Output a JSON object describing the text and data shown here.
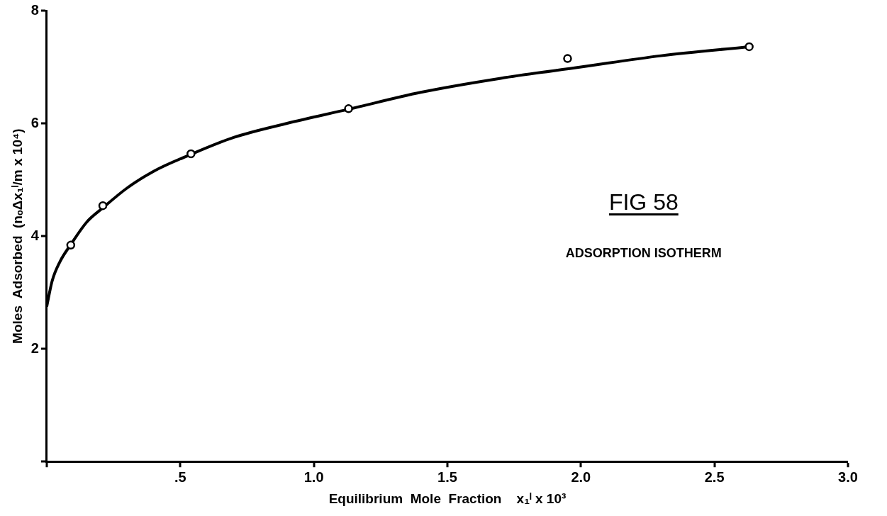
{
  "chart_data": {
    "type": "scatter",
    "xlabel": "Equilibrium  Mole  Fraction    x₁ˡ x 10³",
    "ylabel": "Moles  Adsorbed  (nₒΔx₁ˡ/m x 10⁴)",
    "annotations": [
      "FIG 58",
      "ADSORPTION  ISOTHERM"
    ],
    "xlim": [
      0,
      3
    ],
    "xticks": [
      {
        "value": 0,
        "label": null
      },
      {
        "value": 0.5,
        "label": ".5"
      },
      {
        "value": 1,
        "label": "1.0"
      },
      {
        "value": 1.5,
        "label": "1.5"
      },
      {
        "value": 2,
        "label": "2.0"
      },
      {
        "value": 2.5,
        "label": "2.5"
      },
      {
        "value": 3,
        "label": "3.0"
      }
    ],
    "ylim": [
      0,
      8
    ],
    "yticks": [
      {
        "value": 0,
        "label": null
      },
      2,
      4,
      6,
      8
    ],
    "grid": false,
    "legend": false,
    "marker": "circle",
    "series": [
      {
        "color": "#000000",
        "x": [
          0.09,
          0.21,
          0.54,
          1.13,
          1.95,
          2.63
        ],
        "values": [
          3.84,
          4.54,
          5.46,
          6.26,
          7.15,
          7.36
        ]
      },
      {
        "type": "line",
        "color": "#000000",
        "marker": "none",
        "x": [
          0,
          0.02,
          0.05,
          0.09,
          0.15,
          0.21,
          0.3,
          0.4,
          0.54,
          0.7,
          0.9,
          1.13,
          1.4,
          1.7,
          2.0,
          2.3,
          2.63
        ],
        "values": [
          2.75,
          3.2,
          3.55,
          3.85,
          4.25,
          4.5,
          4.85,
          5.15,
          5.45,
          5.75,
          6.0,
          6.25,
          6.55,
          6.8,
          7.0,
          7.2,
          7.36
        ]
      }
    ]
  }
}
